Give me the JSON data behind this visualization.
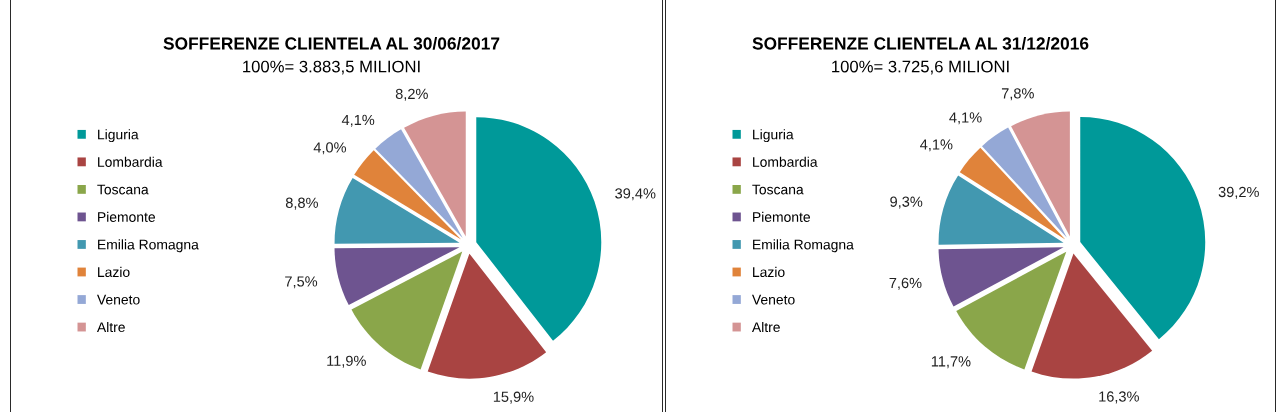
{
  "chart_data": [
    {
      "type": "pie",
      "title": "SOFFERENZE CLIENTELA AL 30/06/2017",
      "subtitle": "100%= 3.883,5 MILIONI",
      "categories": [
        "Liguria",
        "Lombardia",
        "Toscana",
        "Piemonte",
        "Emilia Romagna",
        "Lazio",
        "Veneto",
        "Altre"
      ],
      "values": [
        39.4,
        15.9,
        11.9,
        7.5,
        8.8,
        4.0,
        4.1,
        8.2
      ],
      "value_labels": [
        "39,4%",
        "15,9%",
        "11,9%",
        "7,5%",
        "8,8%",
        "4,0%",
        "4,1%",
        "8,2%"
      ],
      "colors": [
        "#009999",
        "#a94442",
        "#8aa64a",
        "#6e5490",
        "#4298b0",
        "#e0833a",
        "#94a8d6",
        "#d49494"
      ],
      "legend": "left"
    },
    {
      "type": "pie",
      "title": "SOFFERENZE CLIENTELA AL 31/12/2016",
      "subtitle": "100%= 3.725,6 MILIONI",
      "categories": [
        "Liguria",
        "Lombardia",
        "Toscana",
        "Piemonte",
        "Emilia Romagna",
        "Lazio",
        "Veneto",
        "Altre"
      ],
      "values": [
        39.2,
        16.3,
        11.7,
        7.6,
        9.3,
        4.1,
        4.1,
        7.8
      ],
      "value_labels": [
        "39,2%",
        "16,3%",
        "11,7%",
        "7,6%",
        "9,3%",
        "4,1%",
        "4,1%",
        "7,8%"
      ],
      "colors": [
        "#009999",
        "#a94442",
        "#8aa64a",
        "#6e5490",
        "#4298b0",
        "#e0833a",
        "#94a8d6",
        "#d49494"
      ],
      "legend": "left"
    }
  ]
}
